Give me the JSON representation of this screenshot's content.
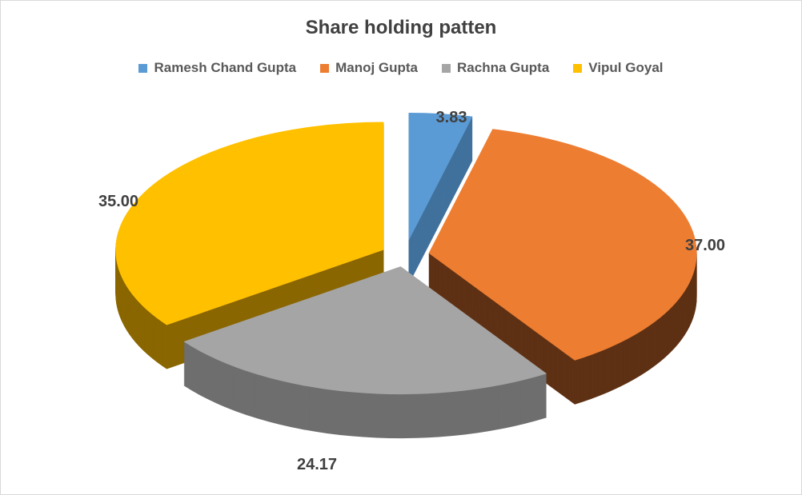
{
  "chart_data": {
    "type": "pie",
    "variant": "3d-exploded",
    "title": "Share holding patten",
    "legend_position": "top",
    "categories": [
      "Ramesh Chand Gupta",
      "Manoj Gupta",
      "Rachna Gupta",
      "Vipul Goyal"
    ],
    "values": [
      3.83,
      37.0,
      24.17,
      35.0
    ],
    "data_labels": [
      "3.83",
      "37.00",
      "24.17",
      "35.00"
    ],
    "colors": [
      "#5B9BD5",
      "#ED7D31",
      "#A5A5A5",
      "#FFC000"
    ],
    "side_colors": [
      "#41719C",
      "#5E3114",
      "#6E6E6E",
      "#8A6600"
    ]
  }
}
